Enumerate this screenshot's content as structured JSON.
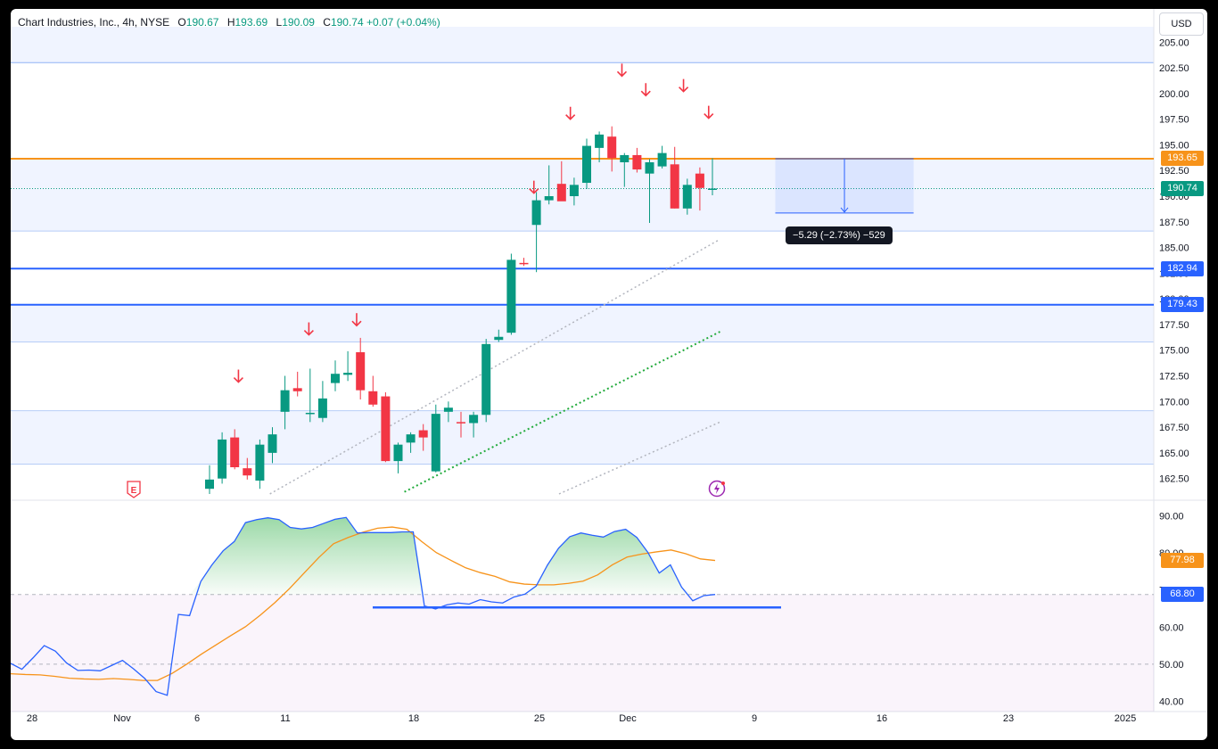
{
  "legend": {
    "symbol": "Chart Industries, Inc., 4h, NYSE",
    "open_label": "O",
    "open": "190.67",
    "high_label": "H",
    "high": "193.69",
    "low_label": "L",
    "low": "190.09",
    "close_label": "C",
    "close": "190.74",
    "change": "+0.07 (+0.04%)"
  },
  "currency": "USD",
  "price_tags": [
    {
      "label": "193.65",
      "value": 193.65,
      "color": "#f7931a"
    },
    {
      "label": "190.74",
      "value": 190.74,
      "color": "#089981"
    },
    {
      "label": "182.94",
      "value": 182.94,
      "color": "#2962ff"
    },
    {
      "label": "179.43",
      "value": 179.43,
      "color": "#2962ff"
    }
  ],
  "indicator_tags": [
    {
      "label": "77.98",
      "value": 77.98,
      "color": "#f7931a"
    },
    {
      "label": "68.80",
      "value": 68.8,
      "color": "#2962ff"
    }
  ],
  "measure_label": "−5.29 (−2.73%) −529",
  "colors": {
    "up": "#089981",
    "down": "#f23645",
    "rsi": "#2962ff",
    "ma": "#f7931a",
    "arrow": "#f23645"
  },
  "chart_data": {
    "type": "candlestick",
    "x_ticks": [
      "28",
      "Nov",
      "6",
      "11",
      "18",
      "25",
      "Dec",
      "9",
      "16",
      "23",
      "2025"
    ],
    "y_ticks": [
      "205.00",
      "202.50",
      "200.00",
      "197.50",
      "195.00",
      "192.50",
      "190.00",
      "187.50",
      "185.00",
      "182.50",
      "180.00",
      "177.50",
      "175.00",
      "172.50",
      "170.00",
      "167.50",
      "165.00",
      "162.50"
    ],
    "y_range": [
      160.3,
      206.5
    ],
    "candles": [
      {
        "o": 161.5,
        "h": 163.8,
        "l": 161.0,
        "c": 162.4
      },
      {
        "o": 162.5,
        "h": 167.0,
        "l": 162.0,
        "c": 166.3
      },
      {
        "o": 166.5,
        "h": 167.3,
        "l": 163.4,
        "c": 163.6
      },
      {
        "o": 163.5,
        "h": 164.5,
        "l": 162.4,
        "c": 162.8
      },
      {
        "o": 162.3,
        "h": 166.3,
        "l": 161.5,
        "c": 165.8
      },
      {
        "o": 165.0,
        "h": 167.5,
        "l": 164.0,
        "c": 166.8
      },
      {
        "o": 169.0,
        "h": 172.5,
        "l": 167.3,
        "c": 171.1
      },
      {
        "o": 171.3,
        "h": 172.9,
        "l": 170.5,
        "c": 171.0
      },
      {
        "o": 168.8,
        "h": 173.2,
        "l": 168.0,
        "c": 168.9
      },
      {
        "o": 168.4,
        "h": 172.0,
        "l": 168.0,
        "c": 170.3
      },
      {
        "o": 171.8,
        "h": 174.0,
        "l": 171.0,
        "c": 172.7
      },
      {
        "o": 172.6,
        "h": 174.9,
        "l": 172.0,
        "c": 172.8
      },
      {
        "o": 174.8,
        "h": 176.2,
        "l": 170.2,
        "c": 171.1
      },
      {
        "o": 171.0,
        "h": 172.5,
        "l": 169.5,
        "c": 169.7
      },
      {
        "o": 170.5,
        "h": 170.9,
        "l": 164.1,
        "c": 164.2
      },
      {
        "o": 164.2,
        "h": 166.0,
        "l": 163.0,
        "c": 165.8
      },
      {
        "o": 166.0,
        "h": 167.0,
        "l": 165.0,
        "c": 166.8
      },
      {
        "o": 167.2,
        "h": 167.8,
        "l": 165.2,
        "c": 166.5
      },
      {
        "o": 163.2,
        "h": 169.7,
        "l": 163.1,
        "c": 168.8
      },
      {
        "o": 169.0,
        "h": 170.0,
        "l": 168.0,
        "c": 169.4
      },
      {
        "o": 168.0,
        "h": 169.0,
        "l": 166.5,
        "c": 167.9
      },
      {
        "o": 167.9,
        "h": 169.0,
        "l": 166.5,
        "c": 168.7
      },
      {
        "o": 168.7,
        "h": 176.1,
        "l": 168.0,
        "c": 175.6
      },
      {
        "o": 176.0,
        "h": 177.0,
        "l": 175.8,
        "c": 176.3
      },
      {
        "o": 176.7,
        "h": 184.4,
        "l": 176.5,
        "c": 183.8
      },
      {
        "o": 183.5,
        "h": 184.0,
        "l": 183.2,
        "c": 183.4
      },
      {
        "o": 187.2,
        "h": 190.4,
        "l": 182.6,
        "c": 189.6
      },
      {
        "o": 189.6,
        "h": 193.0,
        "l": 189.2,
        "c": 190.0
      },
      {
        "o": 191.2,
        "h": 193.4,
        "l": 189.7,
        "c": 189.5
      },
      {
        "o": 190.0,
        "h": 191.8,
        "l": 189.1,
        "c": 191.1
      },
      {
        "o": 191.3,
        "h": 195.6,
        "l": 190.7,
        "c": 194.9
      },
      {
        "o": 194.7,
        "h": 196.3,
        "l": 193.3,
        "c": 196.0
      },
      {
        "o": 195.8,
        "h": 196.8,
        "l": 192.4,
        "c": 193.7
      },
      {
        "o": 193.3,
        "h": 194.2,
        "l": 190.9,
        "c": 194.0
      },
      {
        "o": 194.0,
        "h": 194.7,
        "l": 192.3,
        "c": 192.6
      },
      {
        "o": 192.2,
        "h": 193.6,
        "l": 187.4,
        "c": 193.3
      },
      {
        "o": 192.9,
        "h": 194.9,
        "l": 192.7,
        "c": 194.2
      },
      {
        "o": 193.1,
        "h": 194.8,
        "l": 188.8,
        "c": 188.8
      },
      {
        "o": 188.8,
        "h": 191.7,
        "l": 188.2,
        "c": 191.1
      },
      {
        "o": 192.2,
        "h": 192.8,
        "l": 188.6,
        "c": 190.8
      },
      {
        "o": 190.67,
        "h": 193.69,
        "l": 190.09,
        "c": 190.74
      }
    ],
    "rsi": {
      "y_ticks": [
        "90.00",
        "80.00",
        "70.00",
        "60.00",
        "50.00",
        "40.00"
      ],
      "y_range": [
        37.2,
        94.0
      ],
      "rsi_values": [
        50.2,
        48.6,
        51.7,
        55.0,
        53.5,
        50.3,
        48.3,
        48.4,
        48.2,
        49.6,
        51.0,
        48.7,
        46.1,
        42.6,
        41.6,
        63.4,
        63.1,
        72.3,
        76.8,
        80.6,
        83.1,
        88.2,
        89.0,
        89.5,
        89.0,
        86.9,
        86.5,
        86.9,
        88.0,
        89.1,
        89.6,
        85.4,
        85.5,
        85.5,
        85.5,
        85.7,
        85.7,
        65.7
      ],
      "rsi_tail": [
        64.9,
        66.0,
        66.5,
        66.2,
        67.4,
        66.8,
        66.5,
        68.1,
        68.9,
        71.1,
        76.7,
        81.3,
        84.4,
        85.4,
        84.8,
        84.3,
        85.8,
        86.4,
        84.2,
        80.1,
        74.6,
        76.8,
        70.8,
        67.1,
        68.5,
        68.8
      ],
      "ma_values": [
        47.4,
        47.2,
        47.1,
        46.7,
        46.2,
        46.0,
        45.9,
        46.1,
        45.9,
        45.6,
        45.6,
        47.5,
        50.0,
        52.7,
        55.2,
        57.7,
        60.1,
        63.2,
        66.6,
        70.4,
        74.6,
        78.8,
        82.5,
        84.2,
        85.6,
        86.7,
        87.0,
        86.4,
        83.1,
        80.1,
        78.0,
        76.0,
        74.7,
        73.7,
        72.2,
        71.6,
        71.4,
        71.4,
        71.8,
        72.4,
        74.1,
        76.8,
        78.9,
        79.7,
        80.3,
        80.8,
        79.8,
        78.4,
        77.98
      ]
    }
  }
}
